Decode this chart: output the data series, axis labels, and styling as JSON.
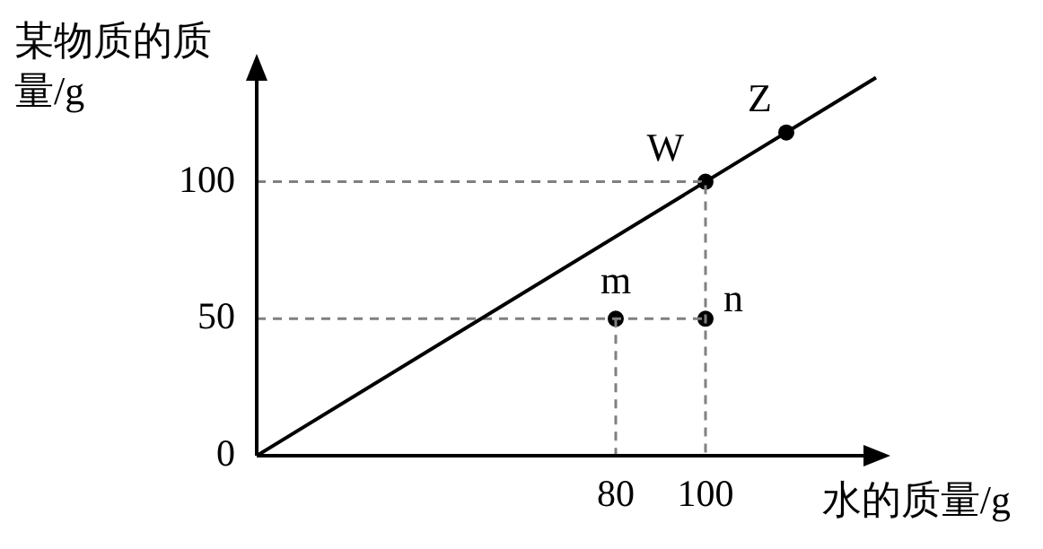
{
  "chart_data": {
    "type": "line",
    "xlabel": "水的质量/g",
    "ylabel": "某物质的质量/g",
    "xlim": [
      0,
      140
    ],
    "ylim": [
      0,
      145
    ],
    "xticks": [
      80,
      100
    ],
    "yticks": [
      0,
      50,
      100
    ],
    "grid": false,
    "legend": false,
    "series": [
      {
        "type": "line",
        "color": "#000000",
        "marker": "none",
        "x": [
          0,
          138
        ],
        "values": [
          0,
          138
        ]
      },
      {
        "type": "line",
        "color": "#808080",
        "marker": "none",
        "line_style": "dashed",
        "x": [
          0,
          100,
          100
        ],
        "values": [
          100,
          100,
          0
        ]
      },
      {
        "type": "line",
        "color": "#808080",
        "marker": "none",
        "line_style": "dashed",
        "x": [
          0,
          100
        ],
        "values": [
          50,
          50
        ]
      },
      {
        "type": "line",
        "color": "#808080",
        "marker": "none",
        "line_style": "dashed",
        "x": [
          80,
          80
        ],
        "values": [
          50,
          0
        ]
      },
      {
        "type": "scatter",
        "color": "#000000",
        "marker": "circle",
        "x": [
          80,
          100,
          100,
          118
        ],
        "values": [
          50,
          50,
          100,
          118
        ]
      }
    ],
    "annotations": [
      {
        "text": "m",
        "x": 80,
        "y": 50
      },
      {
        "text": "n",
        "x": 100,
        "y": 50
      },
      {
        "text": "W",
        "x": 100,
        "y": 100
      },
      {
        "text": "Z",
        "x": 118,
        "y": 118
      }
    ]
  }
}
